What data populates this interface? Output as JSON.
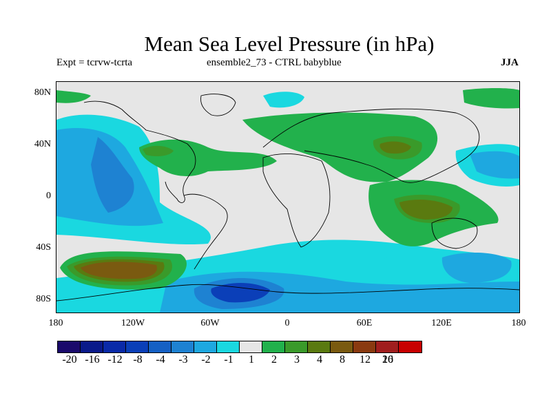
{
  "title": "Mean Sea Level Pressure (in hPa)",
  "subtitle_left": "Expt = tcrvw-tcrta",
  "subtitle_center": "ensemble2_73 - CTRL babyblue",
  "subtitle_right": "JJA",
  "x_ticks": [
    "180",
    "120W",
    "60W",
    "0",
    "60E",
    "120E",
    "180"
  ],
  "y_ticks": [
    "80N",
    "40N",
    "0",
    "40S",
    "80S"
  ],
  "colorbar": {
    "colors": [
      "#1a0a6b",
      "#0a1a8a",
      "#0a2aa8",
      "#0b3fb8",
      "#1560c4",
      "#1e82d2",
      "#1ea8e0",
      "#1ad8e0",
      "#e6e6e6",
      "#22b14c",
      "#3a9a2a",
      "#5a7a10",
      "#7a5a10",
      "#8a3a10",
      "#a01e1e",
      "#c80000"
    ],
    "labels": [
      "-20",
      "-16",
      "-12",
      "-8",
      "-4",
      "-3",
      "-2",
      "-1",
      "1",
      "2",
      "3",
      "4",
      "8",
      "12",
      "16",
      "20"
    ]
  },
  "field_colors": {
    "neutral": "#e6e6e6",
    "neg1": "#1ad8e0",
    "neg2": "#1ea8e0",
    "neg3": "#1e82d2",
    "neg4": "#1560c4",
    "neg8": "#0b3fb8",
    "pos1": "#22b14c",
    "pos2": "#3a9a2a",
    "pos3": "#5a7a10",
    "pos4": "#7a5a10",
    "pos8": "#8a3a10"
  }
}
